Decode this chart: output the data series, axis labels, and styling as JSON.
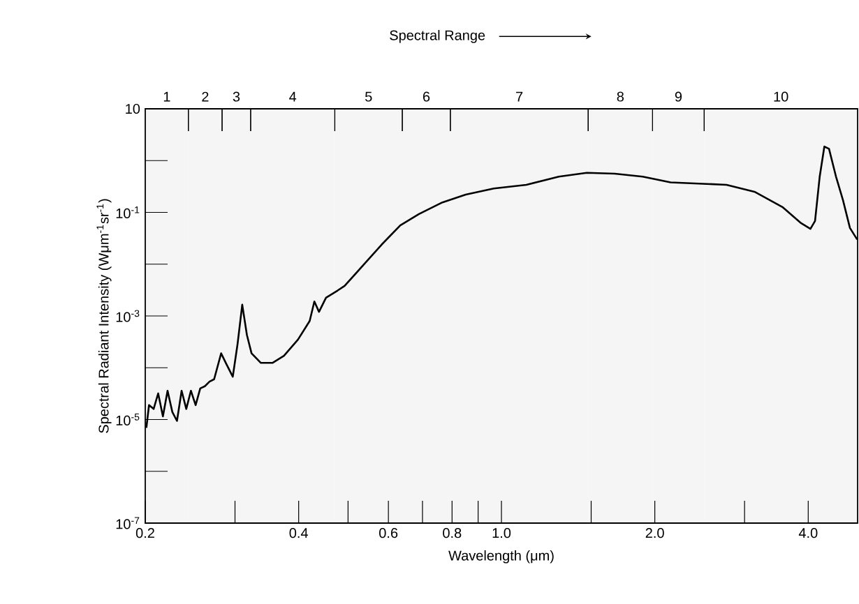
{
  "chart_data": {
    "type": "line",
    "annotations": [
      "Spectral Range"
    ],
    "xlabel": "Wavelength (μm)",
    "ylabel": "Spectral Radiant Intensity (Wμm$^{-1}$sr$^{-1}$)",
    "log": "xy",
    "xlim": [
      0.2,
      5.0
    ],
    "ylim": [
      1e-07,
      10
    ],
    "xticks": [
      0.2,
      {
        "value": 0.3,
        "label": null
      },
      0.4,
      {
        "value": 0.5,
        "label": null
      },
      0.6,
      {
        "value": 0.7,
        "label": null
      },
      0.8,
      {
        "value": 0.9,
        "label": null
      },
      {
        "value": 1,
        "label": "1.0"
      },
      {
        "value": 1.5,
        "label": null
      },
      {
        "value": 2,
        "label": "2.0"
      },
      {
        "value": 3,
        "label": null
      },
      {
        "value": 4,
        "label": "4.0"
      }
    ],
    "yticks": [
      {
        "value": 1e-07,
        "label": "10$^{-7}$"
      },
      {
        "value": 1e-06,
        "label": null
      },
      {
        "value": 1e-05,
        "label": "10$^{-5}$"
      },
      {
        "value": 0.0001,
        "label": null
      },
      {
        "value": 0.001,
        "label": "10$^{-3}$"
      },
      {
        "value": 0.01,
        "label": null
      },
      {
        "value": 0.1,
        "label": "10$^{-1}$"
      },
      {
        "value": 1,
        "label": null
      },
      10
    ],
    "bands": [
      {
        "axis": "x",
        "from": 0.2,
        "to": 0.243,
        "label": "1",
        "color": "#f5f5f5"
      },
      {
        "axis": "x",
        "from": 0.243,
        "to": 0.283,
        "label": "2",
        "color": "#f5f5f5"
      },
      {
        "axis": "x",
        "from": 0.283,
        "to": 0.322,
        "label": "3",
        "color": "#f5f5f5"
      },
      {
        "axis": "x",
        "from": 0.322,
        "to": 0.471,
        "label": "4",
        "color": "#f5f5f5"
      },
      {
        "axis": "x",
        "from": 0.471,
        "to": 0.639,
        "label": "5",
        "color": "#f5f5f5"
      },
      {
        "axis": "x",
        "from": 0.639,
        "to": 0.794,
        "label": "6",
        "color": "#f5f5f5"
      },
      {
        "axis": "x",
        "from": 0.794,
        "to": 1.48,
        "label": "7",
        "color": "#f5f5f5"
      },
      {
        "axis": "x",
        "from": 1.48,
        "to": 1.98,
        "label": "8",
        "color": "#f5f5f5"
      },
      {
        "axis": "x",
        "from": 1.98,
        "to": 2.5,
        "label": "9",
        "color": "#f5f5f5"
      },
      {
        "axis": "x",
        "from": 2.5,
        "to": 5.0,
        "label": "10",
        "color": "#f5f5f5"
      }
    ],
    "x": [
      0.201,
      0.2034,
      0.2077,
      0.212,
      0.2166,
      0.2212,
      0.226,
      0.2308,
      0.2357,
      0.2407,
      0.2458,
      0.2511,
      0.2564,
      0.2618,
      0.2674,
      0.273,
      0.2818,
      0.2878,
      0.297,
      0.3034,
      0.31,
      0.3166,
      0.3233,
      0.3372,
      0.3553,
      0.3743,
      0.3988,
      0.4204,
      0.4294,
      0.4385,
      0.4526,
      0.477,
      0.4923,
      0.5356,
      0.5823,
      0.6332,
      0.689,
      0.766,
      0.851,
      0.966,
      1.119,
      1.296,
      1.471,
      1.668,
      1.893,
      2.148,
      2.437,
      2.765,
      3.138,
      3.56,
      3.873,
      4.04,
      4.125,
      4.213,
      4.303,
      4.394,
      4.535,
      4.68,
      4.83,
      4.99
    ],
    "series": [
      {
        "color": "#000000",
        "values": [
          6.9e-06,
          1.9e-05,
          1.6e-05,
          3.2e-05,
          1.15e-05,
          3.6e-05,
          1.4e-05,
          9.4e-06,
          3.6e-05,
          1.6e-05,
          3.6e-05,
          1.9e-05,
          4e-05,
          4.4e-05,
          5.4e-05,
          6e-05,
          0.00019,
          0.000124,
          6.7e-05,
          0.00028,
          0.00165,
          0.00043,
          0.00019,
          0.000124,
          0.000124,
          0.00017,
          0.00035,
          0.0008,
          0.0019,
          0.0012,
          0.00225,
          0.0031,
          0.0038,
          0.0096,
          0.024,
          0.056,
          0.093,
          0.156,
          0.22,
          0.29,
          0.34,
          0.49,
          0.58,
          0.56,
          0.49,
          0.38,
          0.36,
          0.34,
          0.25,
          0.127,
          0.062,
          0.048,
          0.068,
          0.49,
          1.87,
          1.69,
          0.49,
          0.173,
          0.05,
          0.03
        ]
      }
    ]
  }
}
